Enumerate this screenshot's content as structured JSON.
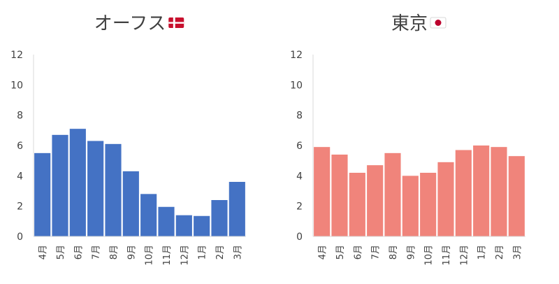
{
  "chart_data": [
    {
      "type": "bar",
      "title": "オーフス",
      "flag": "denmark",
      "categories": [
        "4月",
        "5月",
        "6月",
        "7月",
        "8月",
        "9月",
        "10月",
        "11月",
        "12月",
        "1月",
        "2月",
        "3月"
      ],
      "values": [
        5.5,
        6.7,
        7.1,
        6.3,
        6.1,
        4.3,
        2.8,
        1.95,
        1.4,
        1.35,
        2.4,
        3.6
      ],
      "ylim": [
        0,
        12
      ],
      "yticks": [
        "0",
        "2",
        "4",
        "6",
        "8",
        "10",
        "12"
      ],
      "color": "#4472c4",
      "grid": false
    },
    {
      "type": "bar",
      "title": "東京",
      "flag": "japan",
      "categories": [
        "4月",
        "5月",
        "6月",
        "7月",
        "8月",
        "9月",
        "10月",
        "11月",
        "12月",
        "1月",
        "2月",
        "3月"
      ],
      "values": [
        5.9,
        5.4,
        4.2,
        4.7,
        5.5,
        4.0,
        4.2,
        4.9,
        5.7,
        6.0,
        5.9,
        5.3
      ],
      "ylim": [
        0,
        12
      ],
      "yticks": [
        "0",
        "2",
        "4",
        "6",
        "8",
        "10",
        "12"
      ],
      "color": "#f0847b",
      "grid": false
    }
  ]
}
